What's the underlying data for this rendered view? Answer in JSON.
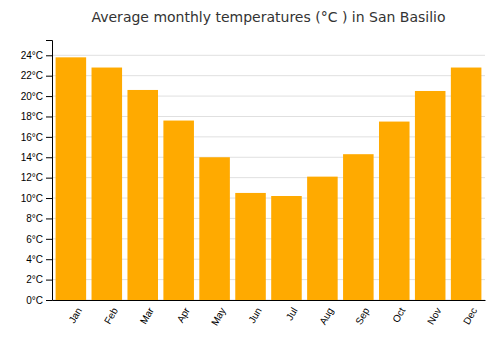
{
  "chart_data": {
    "type": "bar",
    "title": "Average monthly temperatures (°C ) in San Basilio",
    "categories": [
      "Jan",
      "Feb",
      "Mar",
      "Apr",
      "May",
      "Jun",
      "Jul",
      "Aug",
      "Sep",
      "Oct",
      "Nov",
      "Dec"
    ],
    "values": [
      23.8,
      22.8,
      20.6,
      17.6,
      14.0,
      10.5,
      10.2,
      12.1,
      14.3,
      17.5,
      20.5,
      22.8
    ],
    "color": "#FFAA00",
    "ylim": [
      0,
      25.5
    ],
    "yticks": [
      {
        "value": 0,
        "label": "0°C"
      },
      {
        "value": 2,
        "label": "2°C"
      },
      {
        "value": 4,
        "label": "4°C"
      },
      {
        "value": 6,
        "label": "6°C"
      },
      {
        "value": 8,
        "label": "8°C"
      },
      {
        "value": 10,
        "label": "10°C"
      },
      {
        "value": 12,
        "label": "12°C"
      },
      {
        "value": 14,
        "label": "14°C"
      },
      {
        "value": 16,
        "label": "16°C"
      },
      {
        "value": 18,
        "label": "18°C"
      },
      {
        "value": 20,
        "label": "20°C"
      },
      {
        "value": 22,
        "label": "22°C"
      },
      {
        "value": 24,
        "label": "24°C"
      }
    ],
    "grid": true
  }
}
